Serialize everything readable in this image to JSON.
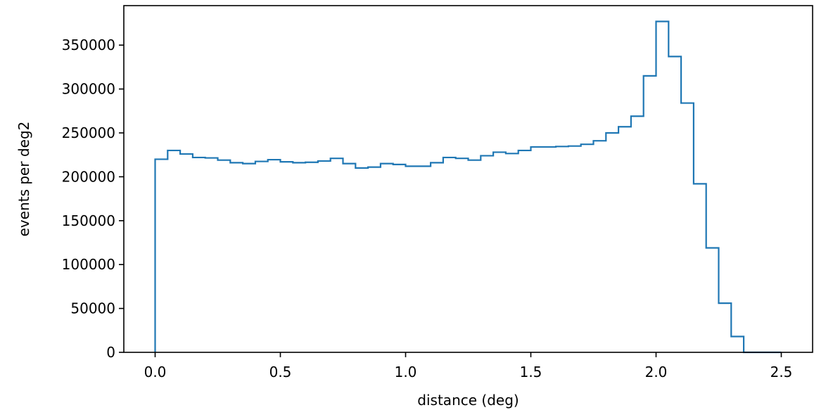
{
  "chart_data": {
    "type": "histogram",
    "xlabel": "distance (deg)",
    "ylabel": "events per deg2",
    "xlim": [
      -0.125,
      2.625
    ],
    "ylim": [
      0,
      395000
    ],
    "xticks": [
      0.0,
      0.5,
      1.0,
      1.5,
      2.0,
      2.5
    ],
    "xtick_labels": [
      "0.0",
      "0.5",
      "1.0",
      "1.5",
      "2.0",
      "2.5"
    ],
    "yticks": [
      0,
      50000,
      100000,
      150000,
      200000,
      250000,
      300000,
      350000
    ],
    "ytick_labels": [
      "0",
      "50000",
      "100000",
      "150000",
      "200000",
      "250000",
      "300000",
      "350000"
    ],
    "bin_width": 0.05,
    "bin_edges_start": 0.0,
    "values": [
      220000,
      230000,
      226000,
      222000,
      221500,
      219000,
      216000,
      215000,
      217500,
      219500,
      217000,
      216000,
      216500,
      218000,
      221000,
      215000,
      210000,
      211000,
      215000,
      214000,
      212000,
      212000,
      216000,
      222000,
      221000,
      219000,
      224000,
      228000,
      226500,
      230000,
      234000,
      234000,
      234500,
      235000,
      237000,
      241000,
      250000,
      257000,
      269000,
      315000,
      377000,
      337000,
      284000,
      192000,
      119000,
      56000,
      18000,
      0,
      0,
      0
    ],
    "color": "#1f77b4",
    "grid": false
  }
}
